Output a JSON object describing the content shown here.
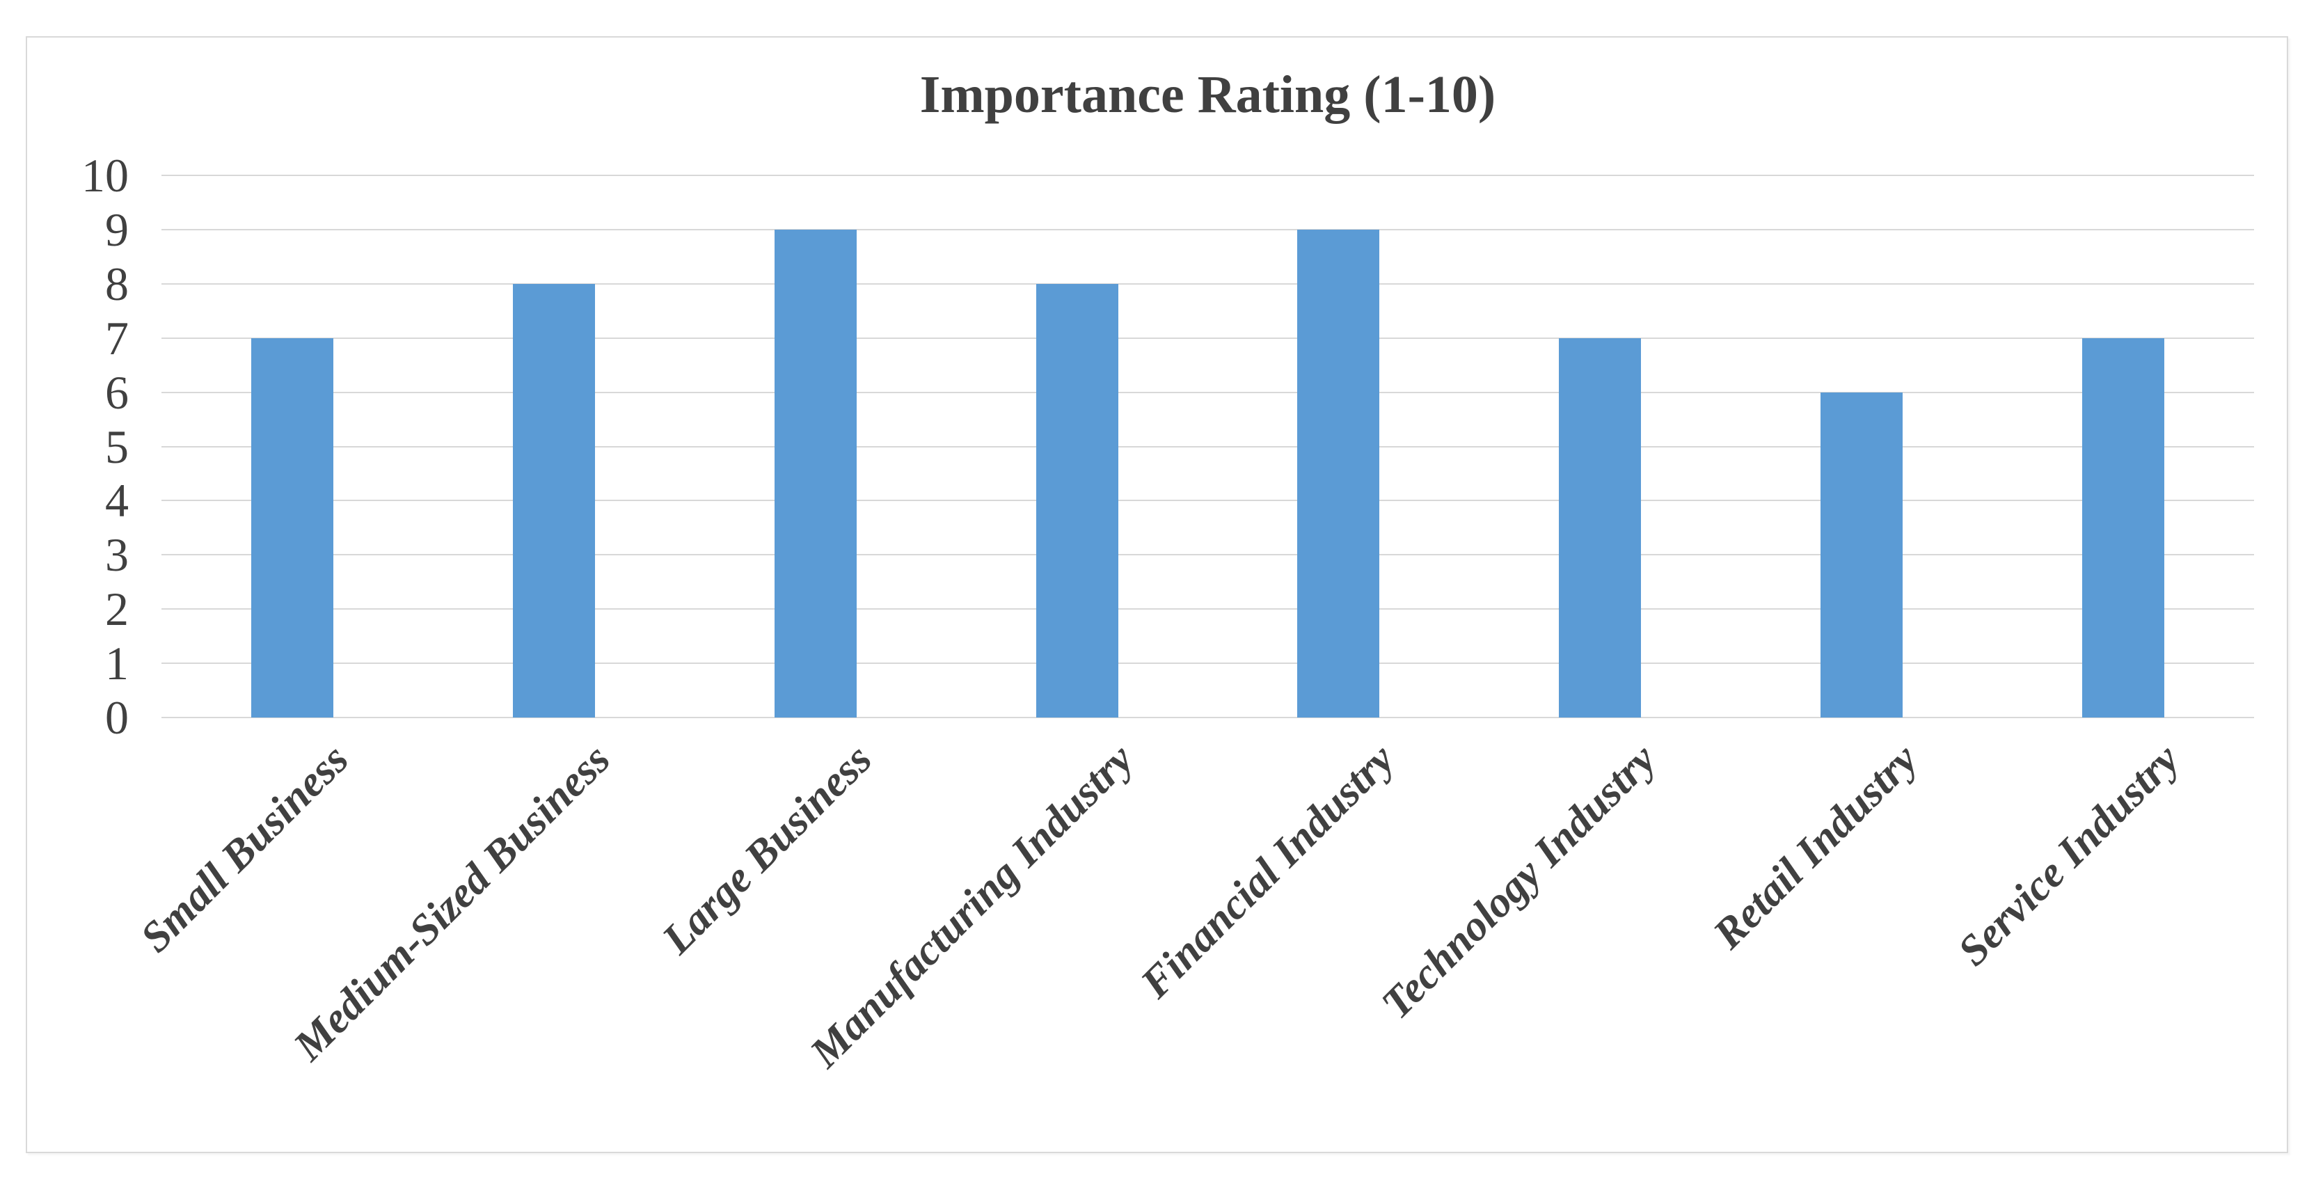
{
  "chart_data": {
    "type": "bar",
    "title": "Importance Rating (1-10)",
    "categories": [
      "Small Business",
      "Medium-Sized Business",
      "Large Business",
      "Manufacturing Industry",
      "Financial Industry",
      "Technology Industry",
      "Retail Industry",
      "Service Industry"
    ],
    "values": [
      7,
      8,
      9,
      8,
      9,
      7,
      6,
      7
    ],
    "xlabel": "",
    "ylabel": "",
    "ylim": [
      0,
      10
    ],
    "yticks": [
      0,
      1,
      2,
      3,
      4,
      5,
      6,
      7,
      8,
      9,
      10
    ],
    "grid": true,
    "legend": false,
    "colors": {
      "bar": "#5B9BD5",
      "gridline": "#D8D8D8",
      "text": "#404040",
      "border": "#D9D9D9",
      "background": "#FFFFFF"
    }
  }
}
